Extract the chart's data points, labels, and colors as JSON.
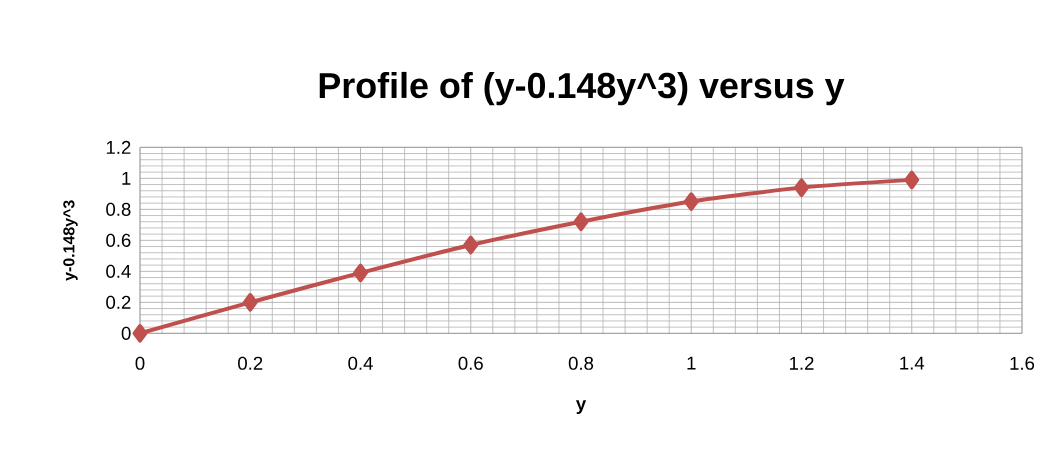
{
  "chart_data": {
    "type": "line",
    "title": "Profile of (y-0.148y^3) versus y",
    "xlabel": "y",
    "ylabel": "y-0.148y^3",
    "x": [
      0,
      0.2,
      0.4,
      0.6,
      0.8,
      1,
      1.2,
      1.4
    ],
    "series": [
      {
        "color": "#c0504d",
        "values": [
          0,
          0.2,
          0.39,
          0.57,
          0.72,
          0.85,
          0.94,
          0.99
        ]
      }
    ],
    "xlim": [
      0,
      1.6
    ],
    "xticks": [
      0,
      0.2,
      0.4,
      0.6,
      0.8,
      1,
      1.2,
      1.4,
      1.6
    ],
    "ylim": [
      0,
      1.2
    ],
    "yticks": [
      0,
      0.2,
      0.4,
      0.6,
      0.8,
      1,
      1.2
    ],
    "grid": true,
    "marker": "diamond",
    "line_style": "solid"
  }
}
